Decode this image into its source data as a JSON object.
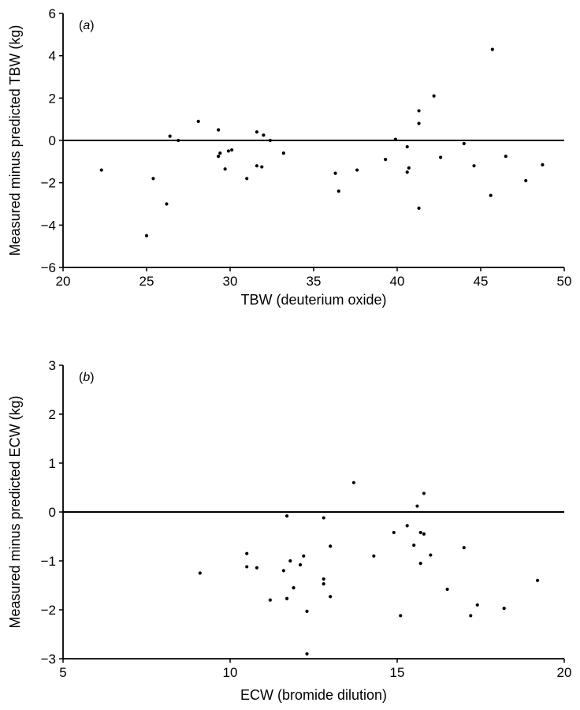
{
  "chart_data": [
    {
      "type": "scatter",
      "panel_label_open": "(",
      "panel_label_letter": "a",
      "panel_label_close": ")",
      "xlabel": "TBW (deuterium oxide)",
      "ylabel": "Measured minus predicted TBW (kg)",
      "xlim": [
        20,
        50
      ],
      "ylim": [
        -6,
        6
      ],
      "xticks": [
        20,
        25,
        30,
        35,
        40,
        45,
        50
      ],
      "yticks": [
        -6,
        -4,
        -2,
        0,
        2,
        4,
        6
      ],
      "reference_line_y": 0,
      "grid": false,
      "points": [
        [
          22.3,
          -1.4
        ],
        [
          25.0,
          -4.5
        ],
        [
          25.4,
          -1.8
        ],
        [
          26.2,
          -3.0
        ],
        [
          26.4,
          0.2
        ],
        [
          26.9,
          0.0
        ],
        [
          28.1,
          0.9
        ],
        [
          29.3,
          0.5
        ],
        [
          29.3,
          -0.75
        ],
        [
          29.4,
          -0.6
        ],
        [
          29.7,
          -1.35
        ],
        [
          29.9,
          -0.5
        ],
        [
          30.1,
          -0.45
        ],
        [
          31.0,
          -1.8
        ],
        [
          31.6,
          0.4
        ],
        [
          31.6,
          -1.2
        ],
        [
          31.9,
          -1.25
        ],
        [
          32.0,
          0.25
        ],
        [
          32.4,
          0.0
        ],
        [
          33.2,
          -0.6
        ],
        [
          36.3,
          -1.55
        ],
        [
          36.5,
          -2.4
        ],
        [
          37.6,
          -1.4
        ],
        [
          39.3,
          -0.9
        ],
        [
          39.9,
          0.05
        ],
        [
          40.6,
          -0.3
        ],
        [
          40.7,
          -1.3
        ],
        [
          40.6,
          -1.5
        ],
        [
          41.3,
          1.4
        ],
        [
          41.3,
          0.8
        ],
        [
          41.3,
          -3.2
        ],
        [
          42.2,
          2.1
        ],
        [
          42.6,
          -0.8
        ],
        [
          44.0,
          -0.15
        ],
        [
          44.6,
          -1.2
        ],
        [
          45.6,
          -2.6
        ],
        [
          45.7,
          4.3
        ],
        [
          46.5,
          -0.75
        ],
        [
          47.7,
          -1.9
        ],
        [
          48.7,
          -1.15
        ]
      ]
    },
    {
      "type": "scatter",
      "panel_label_open": "(",
      "panel_label_letter": "b",
      "panel_label_close": ")",
      "xlabel": "ECW (bromide dilution)",
      "ylabel": "Measured minus predicted ECW (kg)",
      "xlim": [
        5,
        20
      ],
      "ylim": [
        -3,
        3
      ],
      "xticks": [
        5,
        10,
        15,
        20
      ],
      "yticks": [
        -3,
        -2,
        -1,
        0,
        1,
        2,
        3
      ],
      "reference_line_y": 0,
      "grid": false,
      "points": [
        [
          9.1,
          -1.25
        ],
        [
          10.5,
          -0.85
        ],
        [
          10.5,
          -1.12
        ],
        [
          10.8,
          -1.14
        ],
        [
          11.2,
          -1.8
        ],
        [
          11.6,
          -1.2
        ],
        [
          11.7,
          -0.08
        ],
        [
          11.7,
          -1.77
        ],
        [
          11.8,
          -1.0
        ],
        [
          11.9,
          -1.55
        ],
        [
          12.1,
          -1.08
        ],
        [
          12.2,
          -0.9
        ],
        [
          12.3,
          -2.03
        ],
        [
          12.3,
          -2.9
        ],
        [
          12.8,
          -0.12
        ],
        [
          12.8,
          -1.37
        ],
        [
          12.8,
          -1.47
        ],
        [
          13.0,
          -0.7
        ],
        [
          13.0,
          -1.73
        ],
        [
          13.7,
          0.6
        ],
        [
          14.3,
          -0.9
        ],
        [
          14.9,
          -0.42
        ],
        [
          15.1,
          -2.12
        ],
        [
          15.3,
          -0.28
        ],
        [
          15.5,
          -0.68
        ],
        [
          15.6,
          0.12
        ],
        [
          15.7,
          -0.42
        ],
        [
          15.7,
          -1.05
        ],
        [
          15.8,
          -0.45
        ],
        [
          15.8,
          0.38
        ],
        [
          16.0,
          -0.88
        ],
        [
          16.5,
          -1.58
        ],
        [
          17.0,
          -0.73
        ],
        [
          17.2,
          -2.12
        ],
        [
          17.4,
          -1.9
        ],
        [
          18.2,
          -1.97
        ],
        [
          19.2,
          -1.4
        ]
      ]
    }
  ]
}
